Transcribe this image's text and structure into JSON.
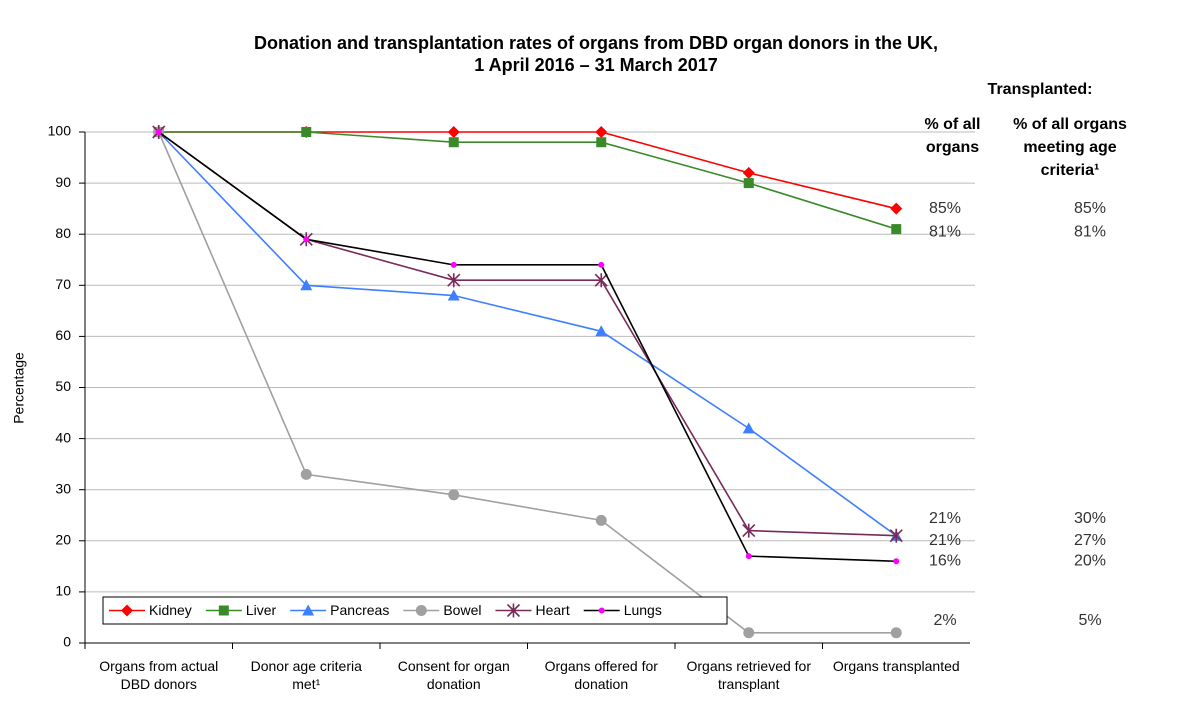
{
  "chart_data": {
    "type": "line",
    "title": [
      "Donation and transplantation rates of organs from DBD organ donors in the UK,",
      "1 April 2016 – 31 March 2017"
    ],
    "ylabel": "Percentage",
    "categories": [
      "Organs from actual DBD donors",
      "Donor age criteria met¹",
      "Consent for organ donation",
      "Organs offered for donation",
      "Organs retrieved for transplant",
      "Organs transplanted"
    ],
    "ylim": [
      0,
      100
    ],
    "yticks": [
      0,
      10,
      20,
      30,
      40,
      50,
      60,
      70,
      80,
      90,
      100
    ],
    "grid": true,
    "legend": "bottom-left",
    "annotation_title": "Transplanted:",
    "column_headers": [
      "% of all organs",
      "% of all organs meeting age criteria¹"
    ],
    "series": [
      {
        "name": "Kidney",
        "color": "#ff0000",
        "marker": "diamond",
        "values": [
          100,
          100,
          100,
          100,
          92,
          85
        ],
        "value_labels": [
          null,
          null,
          null,
          null,
          null,
          "85%"
        ],
        "age_criteria_value": 85,
        "age_criteria_label": "85%"
      },
      {
        "name": "Liver",
        "color": "#3a8a2a",
        "marker": "square",
        "values": [
          100,
          100,
          98,
          98,
          90,
          81
        ],
        "value_labels": [
          null,
          null,
          null,
          null,
          null,
          "81%"
        ],
        "age_criteria_value": 81,
        "age_criteria_label": "81%"
      },
      {
        "name": "Pancreas",
        "color": "#3d7fff",
        "marker": "triangle",
        "values": [
          100,
          70,
          68,
          61,
          42,
          21
        ],
        "value_labels": [
          null,
          null,
          null,
          null,
          null,
          "21%"
        ],
        "age_criteria_value": 30,
        "age_criteria_label": "30%"
      },
      {
        "name": "Bowel",
        "color": "#a0a0a0",
        "marker": "circle",
        "values": [
          100,
          33,
          29,
          24,
          2,
          2
        ],
        "value_labels": [
          null,
          null,
          null,
          null,
          null,
          "2%"
        ],
        "age_criteria_value": 5,
        "age_criteria_label": "5%"
      },
      {
        "name": "Heart",
        "color": "#7a2a5a",
        "marker": "star",
        "values": [
          100,
          79,
          71,
          71,
          22,
          21
        ],
        "value_labels": [
          null,
          null,
          null,
          null,
          null,
          "21%"
        ],
        "age_criteria_value": 27,
        "age_criteria_label": "27%"
      },
      {
        "name": "Lungs",
        "color": "#000000",
        "marker_color": "#ff00ff",
        "marker": "dot",
        "values": [
          100,
          79,
          74,
          74,
          17,
          16
        ],
        "value_labels": [
          null,
          null,
          null,
          null,
          null,
          "16%"
        ],
        "age_criteria_value": 20,
        "age_criteria_label": "20%"
      }
    ]
  }
}
